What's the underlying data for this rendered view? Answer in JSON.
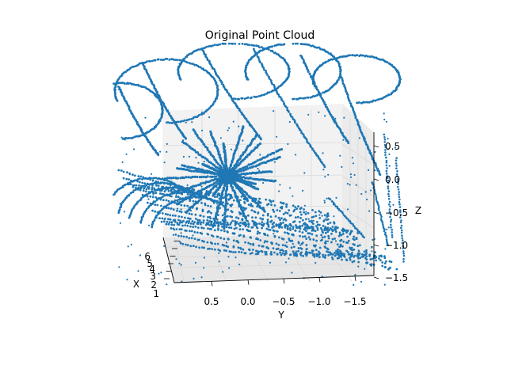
{
  "chart_data": {
    "type": "scatter",
    "projection": "3d",
    "title": "Original Point Cloud",
    "xlabel": "X",
    "ylabel": "Y",
    "zlabel": "Z",
    "x_ticks": [
      "1",
      "2",
      "3",
      "4",
      "5",
      "6"
    ],
    "y_ticks": [
      "0.5",
      "0.0",
      "−0.5",
      "−1.0",
      "−1.5"
    ],
    "z_ticks": [
      "0.5",
      "0.0",
      "−0.5",
      "−1.0",
      "−1.5"
    ],
    "xlim": [
      1,
      6.5
    ],
    "ylim": [
      0.8,
      -1.7
    ],
    "zlim": [
      -1.5,
      0.9
    ],
    "grid": true,
    "marker_color": "#1f77b4",
    "pane_color": "#f2f2f2",
    "grid_color": "#d9d9d9"
  }
}
